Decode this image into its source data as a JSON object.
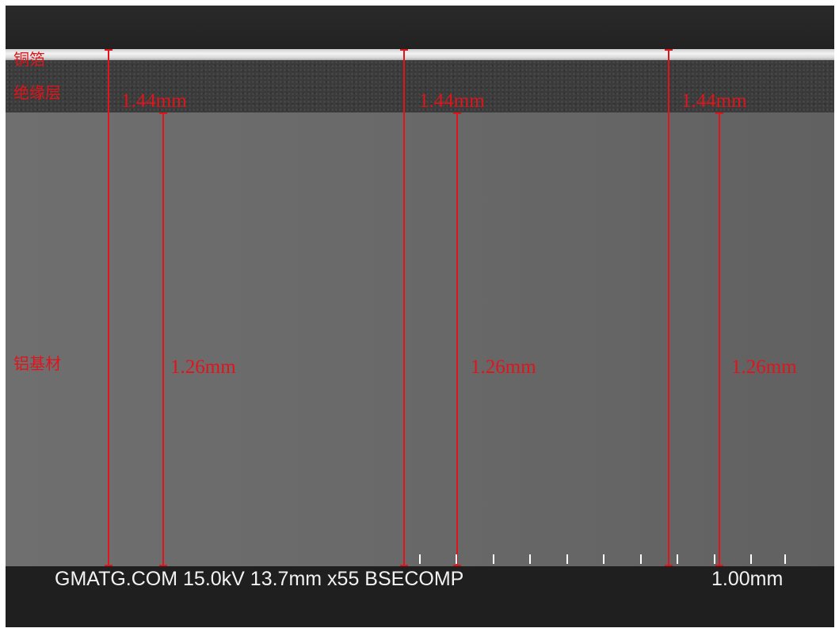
{
  "layers": {
    "copper_label": "铜箔",
    "insulation_label": "绝缘层",
    "aluminum_label": "铝基材"
  },
  "measurements": [
    {
      "total": "1.44mm",
      "substrate": "1.26mm"
    },
    {
      "total": "1.44mm",
      "substrate": "1.26mm"
    },
    {
      "total": "1.44mm",
      "substrate": "1.26mm"
    }
  ],
  "footer": {
    "info": "GMATG.COM 15.0kV 13.7mm x55 BSECOMP",
    "scale": "1.00mm"
  },
  "colors": {
    "annotation": "#e0141a",
    "footer_text": "#f2f2f2"
  }
}
